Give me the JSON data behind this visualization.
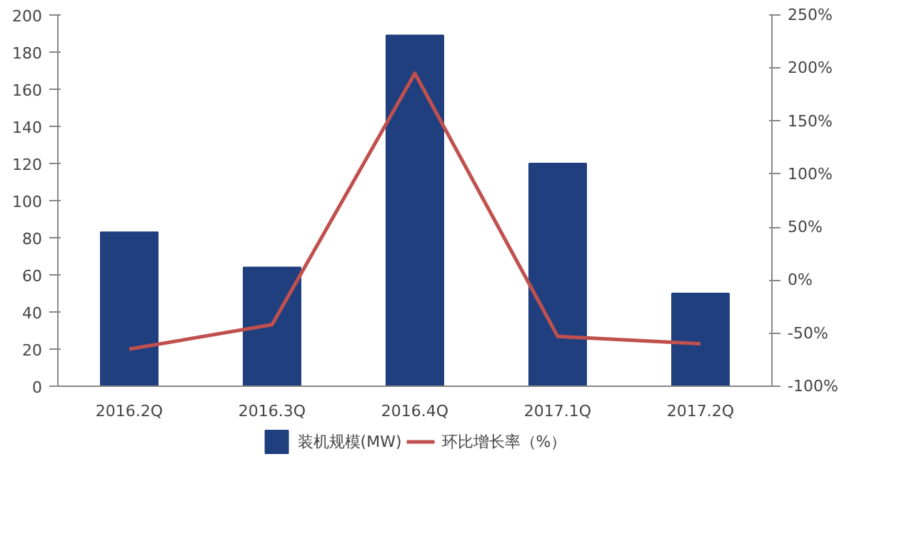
{
  "chart_data": {
    "type": "bar",
    "categories": [
      "2016.2Q",
      "2016.3Q",
      "2016.4Q",
      "2017.1Q",
      "2017.2Q"
    ],
    "series": [
      {
        "name": "装机规模(MW)",
        "color": "#203f7f",
        "values": [
          83,
          64,
          189,
          120,
          50
        ]
      },
      {
        "name": "环比增长率（%）",
        "type": "line",
        "axis": "y2",
        "color": "#c0504d",
        "values": [
          -65,
          -42,
          195,
          -53,
          -60
        ]
      }
    ],
    "ylim": [
      0,
      200
    ],
    "yticks": [
      0,
      20,
      40,
      60,
      80,
      100,
      120,
      140,
      160,
      180,
      200
    ],
    "y2lim": [
      -100,
      250
    ],
    "y2ticks": [
      {
        "value": -100,
        "label": "-100%"
      },
      {
        "value": -50,
        "label": "-50%"
      },
      {
        "value": 0,
        "label": "0%"
      },
      {
        "value": 50,
        "label": "50%"
      },
      {
        "value": 100,
        "label": "100%"
      },
      {
        "value": 150,
        "label": "150%"
      },
      {
        "value": 200,
        "label": "200%"
      },
      {
        "value": 250,
        "label": "250%"
      }
    ],
    "grid": false,
    "legend": "bottom"
  }
}
